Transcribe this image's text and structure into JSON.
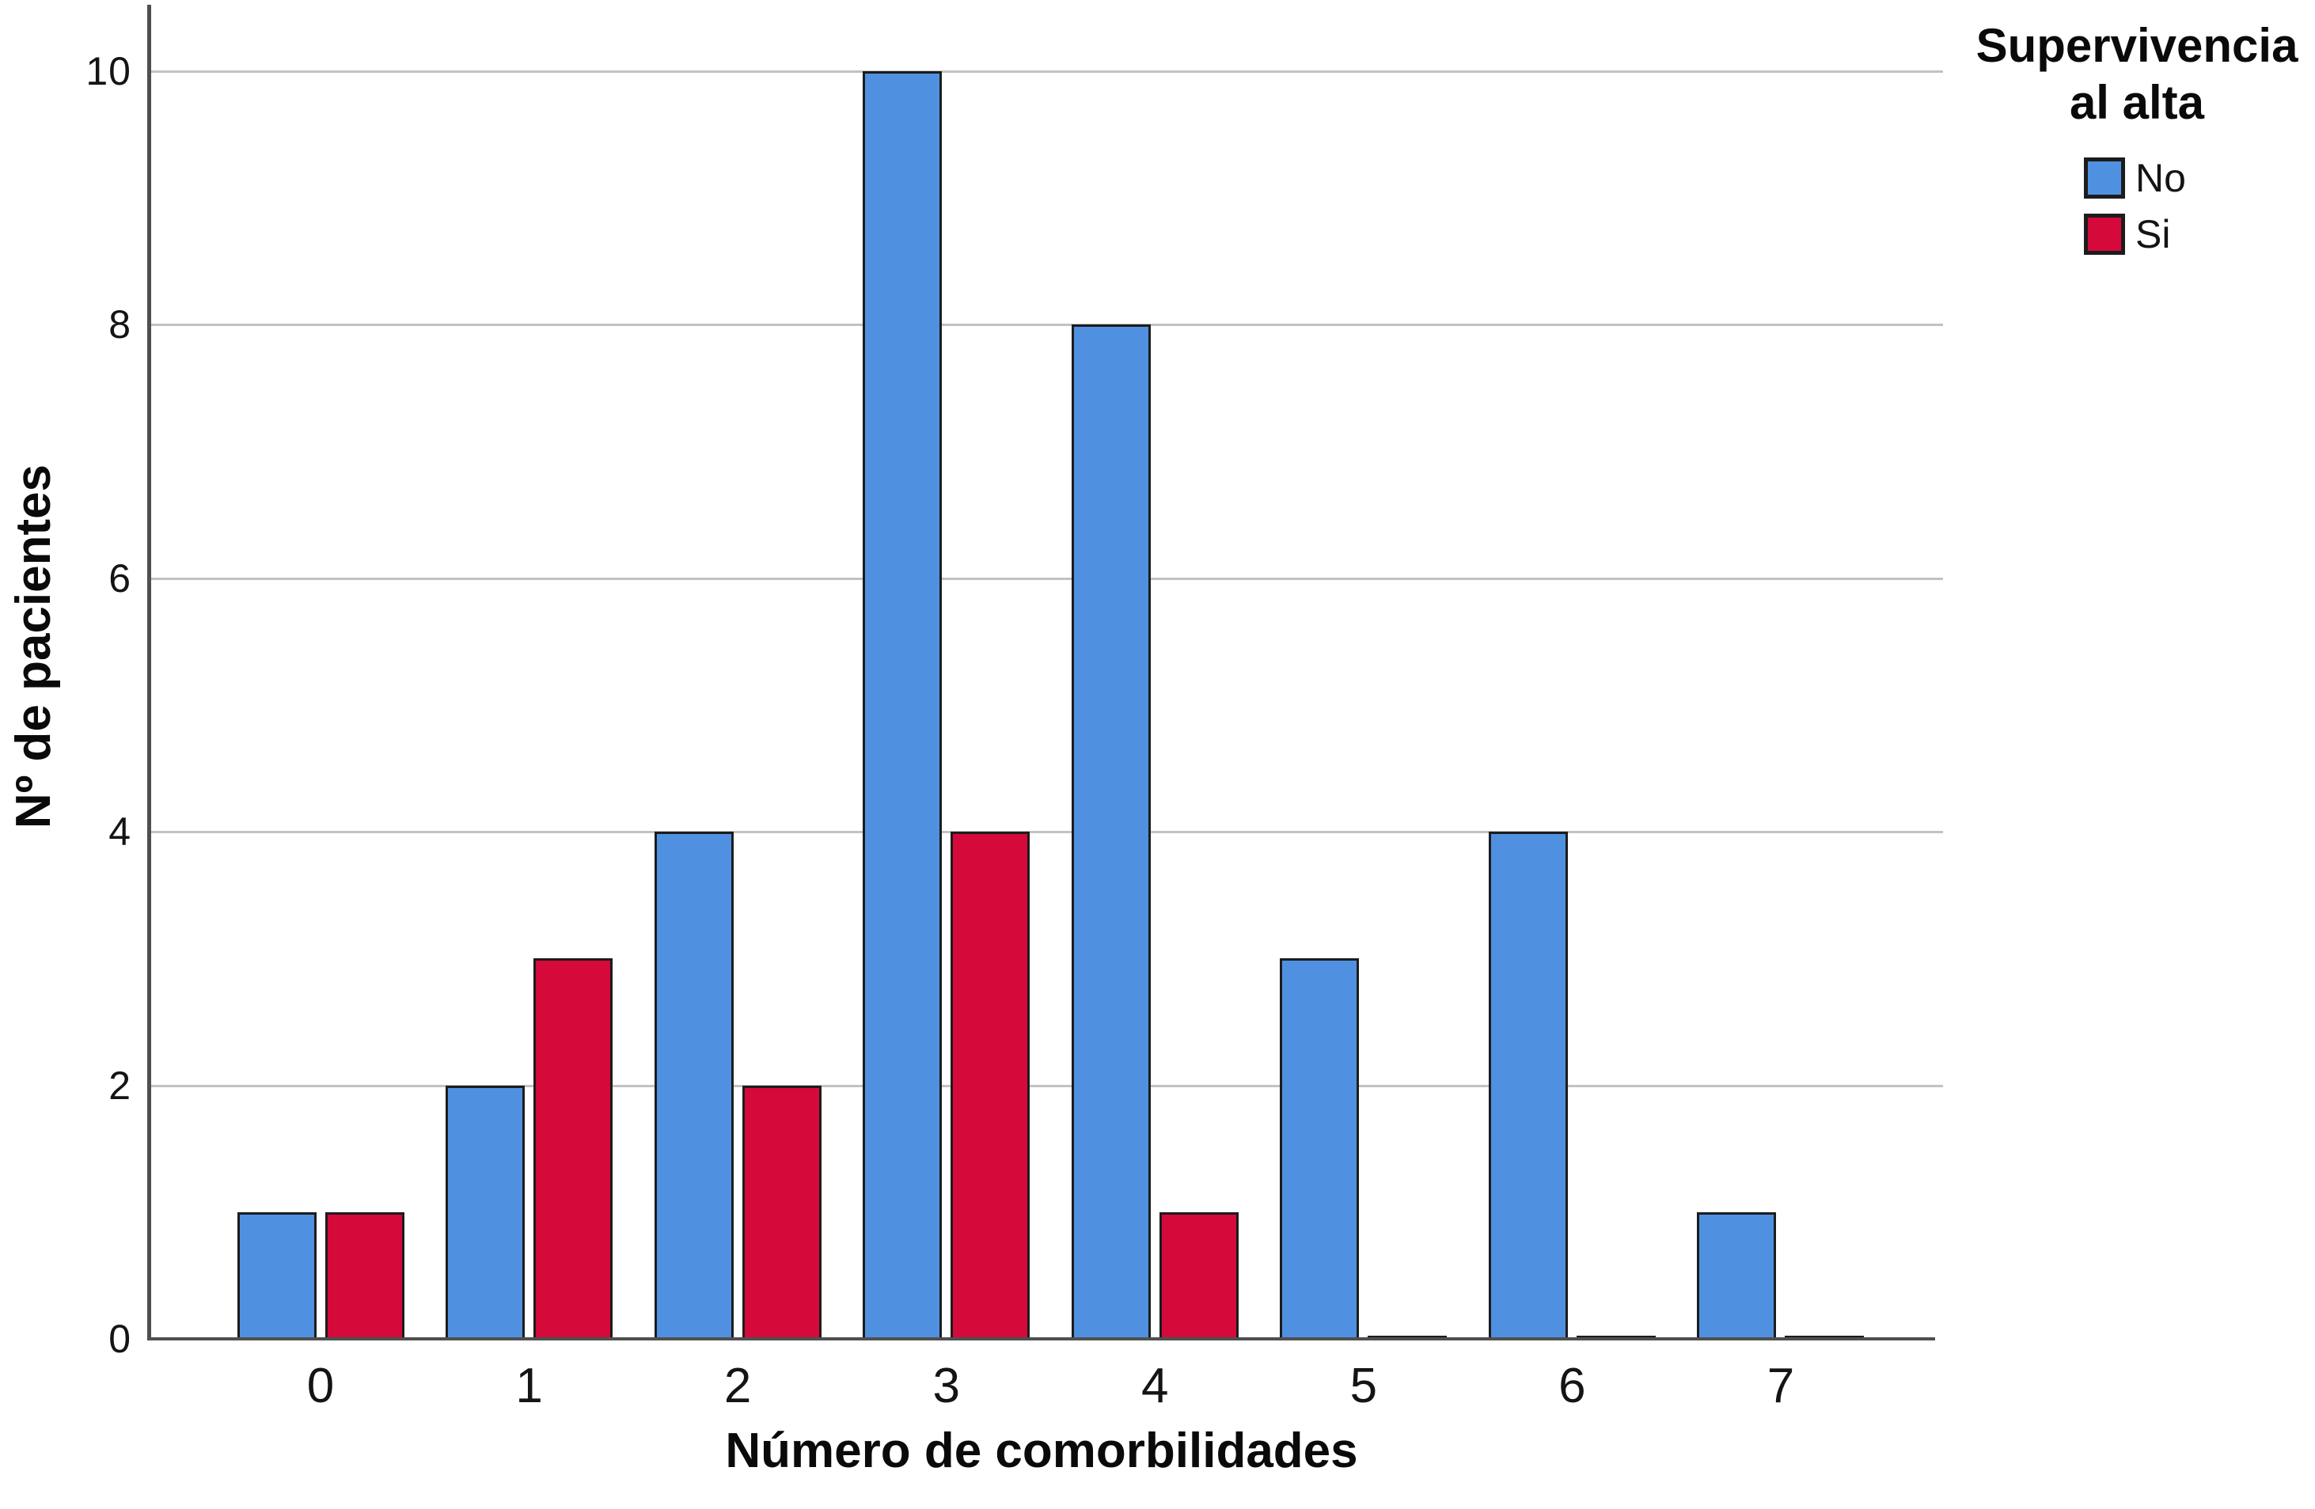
{
  "figure": {
    "background": "#ffffff",
    "legend": {
      "title_line1": "Supervivencia",
      "title_line2": "al alta"
    }
  },
  "chart_data": {
    "type": "bar",
    "title": "",
    "xlabel": "Número de comorbilidades",
    "ylabel": "Nº de pacientes",
    "categories": [
      "0",
      "1",
      "2",
      "3",
      "4",
      "5",
      "6",
      "7"
    ],
    "series": [
      {
        "name": "No",
        "color": "#5090E0",
        "values": [
          1,
          2,
          4,
          10,
          8,
          3,
          4,
          1
        ]
      },
      {
        "name": "Si",
        "color": "#D5093A",
        "values": [
          1,
          3,
          2,
          4,
          1,
          0,
          0,
          0
        ]
      }
    ],
    "ylim": [
      0,
      10
    ],
    "yticks": [
      0,
      2,
      4,
      6,
      8,
      10
    ],
    "grid": "horizontal",
    "legend_title": "Supervivencia al alta",
    "legend_position": "top-right",
    "bar_border_color": "#1c1c1c",
    "gridline_color": "#c2c2c2",
    "axis_line_color": "#4f4f4f"
  }
}
